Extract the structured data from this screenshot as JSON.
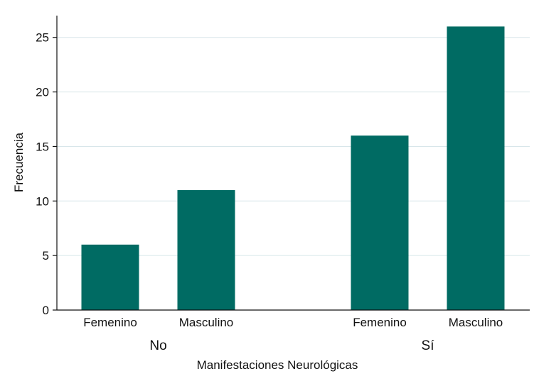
{
  "chart_data": {
    "type": "bar",
    "title": "",
    "xlabel": "Manifestaciones Neurológicas",
    "ylabel": "Frecuencia",
    "ylim": [
      0,
      27
    ],
    "yticks": [
      0,
      5,
      10,
      15,
      20,
      25
    ],
    "grid": true,
    "groups": [
      {
        "label": "No",
        "bars": [
          {
            "category": "Femenino",
            "value": 6
          },
          {
            "category": "Masculino",
            "value": 11
          }
        ]
      },
      {
        "label": "Sí",
        "bars": [
          {
            "category": "Femenino",
            "value": 16
          },
          {
            "category": "Masculino",
            "value": 26
          }
        ]
      }
    ],
    "bar_color": "#006b63",
    "grid_color": "#d8e6ea"
  }
}
